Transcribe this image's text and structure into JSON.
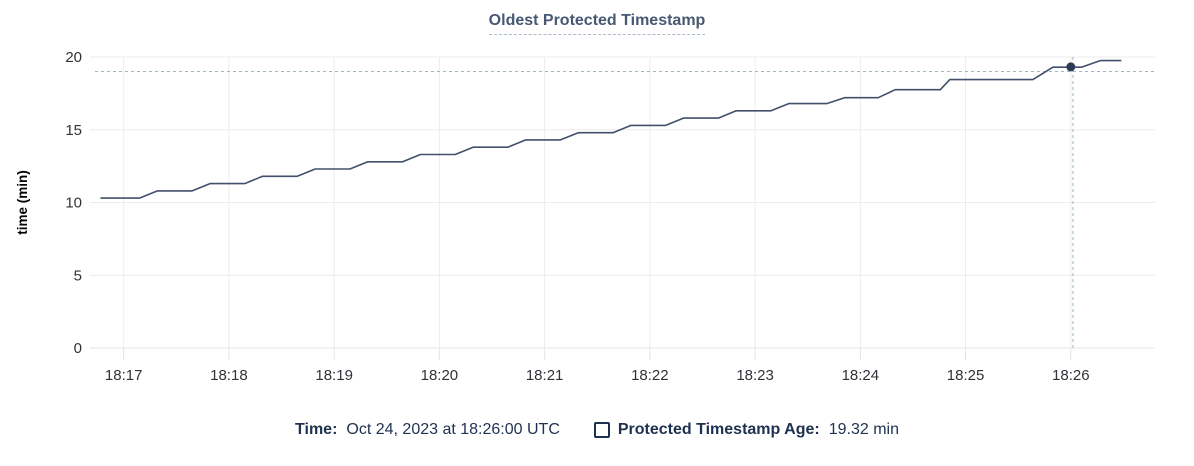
{
  "chart_data": {
    "type": "line",
    "title": "Oldest Protected Timestamp",
    "ylabel": "time (min)",
    "xlabel": "",
    "x_unit": "minutes after 18:00 UTC",
    "x_ticks": [
      {
        "value": 17,
        "label": "18:17"
      },
      {
        "value": 18,
        "label": "18:18"
      },
      {
        "value": 19,
        "label": "18:19"
      },
      {
        "value": 20,
        "label": "18:20"
      },
      {
        "value": 21,
        "label": "18:21"
      },
      {
        "value": 22,
        "label": "18:22"
      },
      {
        "value": 23,
        "label": "18:23"
      },
      {
        "value": 24,
        "label": "18:24"
      },
      {
        "value": 25,
        "label": "18:25"
      },
      {
        "value": 26,
        "label": "18:26"
      }
    ],
    "y_ticks": [
      0,
      5,
      10,
      15,
      20
    ],
    "xlim": [
      16.68,
      26.8
    ],
    "ylim": [
      0,
      20
    ],
    "grid": true,
    "legend_position": "bottom",
    "series": [
      {
        "name": "Protected Timestamp Age",
        "color": "#42506c",
        "points": [
          [
            16.78,
            10.3
          ],
          [
            17.15,
            10.3
          ],
          [
            17.32,
            10.8
          ],
          [
            17.65,
            10.8
          ],
          [
            17.82,
            11.3
          ],
          [
            18.15,
            11.3
          ],
          [
            18.32,
            11.8
          ],
          [
            18.65,
            11.8
          ],
          [
            18.82,
            12.3
          ],
          [
            19.15,
            12.3
          ],
          [
            19.32,
            12.8
          ],
          [
            19.65,
            12.8
          ],
          [
            19.82,
            13.3
          ],
          [
            20.15,
            13.3
          ],
          [
            20.32,
            13.8
          ],
          [
            20.65,
            13.8
          ],
          [
            20.82,
            14.3
          ],
          [
            21.15,
            14.3
          ],
          [
            21.32,
            14.8
          ],
          [
            21.65,
            14.8
          ],
          [
            21.82,
            15.3
          ],
          [
            22.15,
            15.3
          ],
          [
            22.32,
            15.8
          ],
          [
            22.65,
            15.8
          ],
          [
            22.82,
            16.3
          ],
          [
            23.15,
            16.3
          ],
          [
            23.32,
            16.8
          ],
          [
            23.68,
            16.8
          ],
          [
            23.85,
            17.2
          ],
          [
            24.17,
            17.2
          ],
          [
            24.33,
            17.75
          ],
          [
            24.76,
            17.75
          ],
          [
            24.85,
            18.45
          ],
          [
            25.64,
            18.45
          ],
          [
            25.83,
            19.3
          ],
          [
            26.1,
            19.3
          ],
          [
            26.28,
            19.75
          ],
          [
            26.48,
            19.75
          ]
        ]
      }
    ],
    "crosshair": {
      "x": 26.02,
      "y": 19.0
    },
    "highlight_point": {
      "x": 26.0,
      "y": 19.32
    }
  },
  "legend": {
    "time_label": "Time:",
    "time_value": "Oct 24, 2023 at 18:26:00 UTC",
    "series_label": "Protected Timestamp Age:",
    "series_value": "19.32 min"
  },
  "colors": {
    "line": "#42506c",
    "dot": "#2c3a55",
    "crosshair": "#9fb6c6",
    "grid": "#ececec",
    "axis_line": "#e4e4e4",
    "tick_text": "#2f3338",
    "axis_label_text": "#000000",
    "title_text": "#475872",
    "title_underline": "#a9bacb",
    "legend_text": "#1e3150"
  }
}
